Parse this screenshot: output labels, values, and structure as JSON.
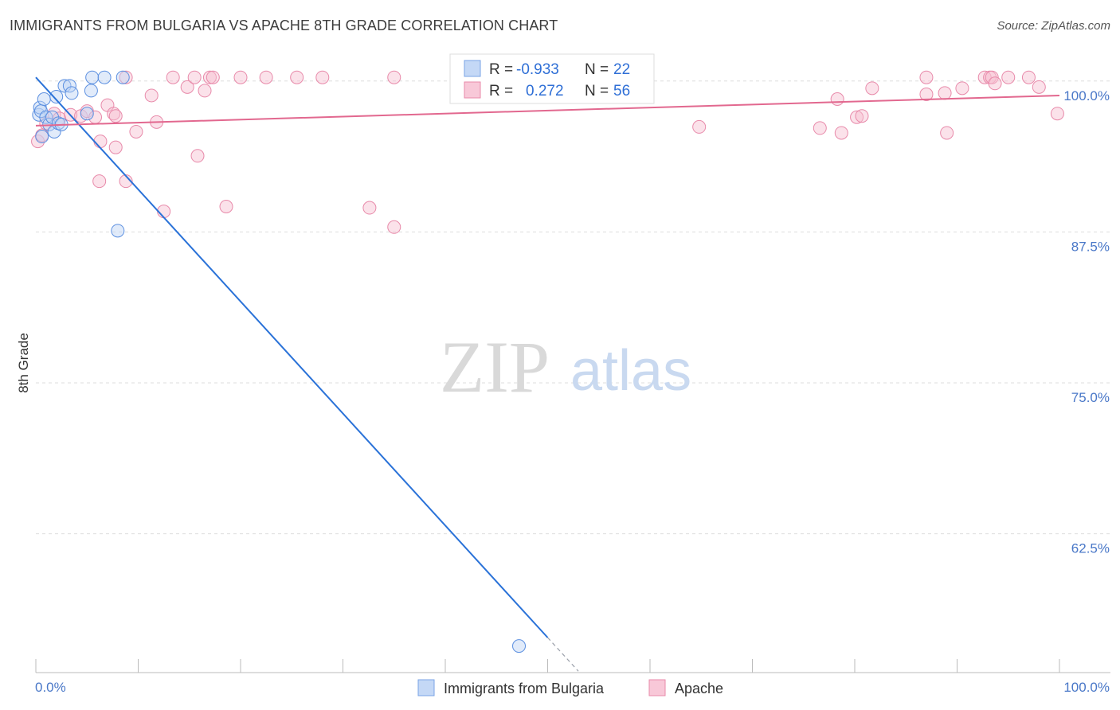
{
  "title": "IMMIGRANTS FROM BULGARIA VS APACHE 8TH GRADE CORRELATION CHART",
  "source": "Source: ZipAtlas.com",
  "colors": {
    "blue": "#4a86e8",
    "pink": "#e8789e",
    "blue_line": "#2a72d8",
    "pink_line": "#e2688f",
    "tick_text": "#4a78c8"
  },
  "stats": {
    "blue": {
      "r_label": "R =",
      "r_value": "-0.933",
      "n_label": "N =",
      "n_value": "22"
    },
    "pink": {
      "r_label": "R =",
      "r_value": "0.272",
      "n_label": "N =",
      "n_value": "56"
    }
  },
  "watermark": {
    "zip": "ZIP",
    "atlas": "atlas"
  },
  "chart_data": {
    "type": "scatter",
    "title": "IMMIGRANTS FROM BULGARIA VS APACHE 8TH GRADE CORRELATION CHART",
    "xlabel": "",
    "ylabel": "8th Grade",
    "xlim": [
      0,
      100
    ],
    "ylim": [
      51,
      101.5
    ],
    "x_tick_labels": [
      "0.0%",
      "100.0%"
    ],
    "y_ticks": [
      62.5,
      75.0,
      87.5,
      100.0
    ],
    "y_tick_labels": [
      "62.5%",
      "75.0%",
      "87.5%",
      "100.0%"
    ],
    "grid": true,
    "legend_position": "bottom-center",
    "series": [
      {
        "name": "Immigrants from Bulgaria",
        "color": "#4a86e8",
        "points": [
          [
            0.3,
            97.2
          ],
          [
            0.4,
            97.8
          ],
          [
            0.5,
            97.5
          ],
          [
            0.6,
            95.4
          ],
          [
            0.8,
            98.5
          ],
          [
            1.0,
            97.0
          ],
          [
            1.3,
            96.4
          ],
          [
            1.6,
            97.0
          ],
          [
            1.8,
            95.8
          ],
          [
            2.0,
            98.7
          ],
          [
            2.2,
            96.5
          ],
          [
            2.5,
            96.4
          ],
          [
            2.8,
            99.6
          ],
          [
            3.3,
            99.6
          ],
          [
            3.5,
            99.0
          ],
          [
            5.0,
            97.3
          ],
          [
            5.4,
            99.2
          ],
          [
            5.5,
            100.3
          ],
          [
            6.7,
            100.3
          ],
          [
            8.0,
            87.6
          ],
          [
            8.5,
            100.3
          ],
          [
            47.2,
            53.2
          ]
        ],
        "trendline": {
          "x": [
            0.0,
            50.0
          ],
          "y": [
            100.3,
            53.9
          ],
          "extended_to_x": 53.0
        }
      },
      {
        "name": "Apache",
        "color": "#e8789e",
        "points": [
          [
            0.2,
            95.0
          ],
          [
            0.6,
            95.5
          ],
          [
            1.0,
            96.5
          ],
          [
            1.8,
            97.3
          ],
          [
            2.3,
            96.9
          ],
          [
            3.4,
            97.2
          ],
          [
            4.4,
            97.1
          ],
          [
            5.0,
            97.5
          ],
          [
            5.8,
            97.0
          ],
          [
            6.2,
            91.7
          ],
          [
            6.3,
            95.0
          ],
          [
            7.0,
            98.0
          ],
          [
            7.6,
            97.3
          ],
          [
            7.8,
            97.1
          ],
          [
            7.8,
            94.5
          ],
          [
            8.8,
            100.3
          ],
          [
            8.8,
            91.7
          ],
          [
            9.8,
            95.8
          ],
          [
            11.3,
            98.8
          ],
          [
            11.8,
            96.6
          ],
          [
            12.5,
            89.2
          ],
          [
            13.4,
            100.3
          ],
          [
            14.8,
            99.5
          ],
          [
            15.5,
            100.3
          ],
          [
            15.8,
            93.8
          ],
          [
            16.5,
            99.2
          ],
          [
            17.0,
            100.3
          ],
          [
            17.3,
            100.3
          ],
          [
            18.6,
            89.6
          ],
          [
            20.0,
            100.3
          ],
          [
            22.5,
            100.3
          ],
          [
            25.5,
            100.3
          ],
          [
            28.0,
            100.3
          ],
          [
            32.6,
            89.5
          ],
          [
            35.0,
            100.3
          ],
          [
            35.0,
            87.9
          ],
          [
            64.8,
            96.2
          ],
          [
            76.6,
            96.1
          ],
          [
            78.3,
            98.5
          ],
          [
            78.7,
            95.7
          ],
          [
            80.2,
            97.0
          ],
          [
            80.7,
            97.1
          ],
          [
            81.7,
            99.4
          ],
          [
            87.0,
            100.3
          ],
          [
            87.0,
            98.9
          ],
          [
            88.8,
            99.0
          ],
          [
            89.0,
            95.7
          ],
          [
            90.5,
            99.4
          ],
          [
            92.7,
            100.3
          ],
          [
            93.2,
            100.3
          ],
          [
            93.4,
            100.3
          ],
          [
            93.7,
            99.8
          ],
          [
            95.0,
            100.3
          ],
          [
            97.0,
            100.3
          ],
          [
            98.0,
            99.5
          ],
          [
            99.8,
            97.3
          ]
        ],
        "trendline": {
          "x": [
            0.0,
            100.0
          ],
          "y": [
            96.3,
            98.8
          ]
        }
      }
    ]
  }
}
